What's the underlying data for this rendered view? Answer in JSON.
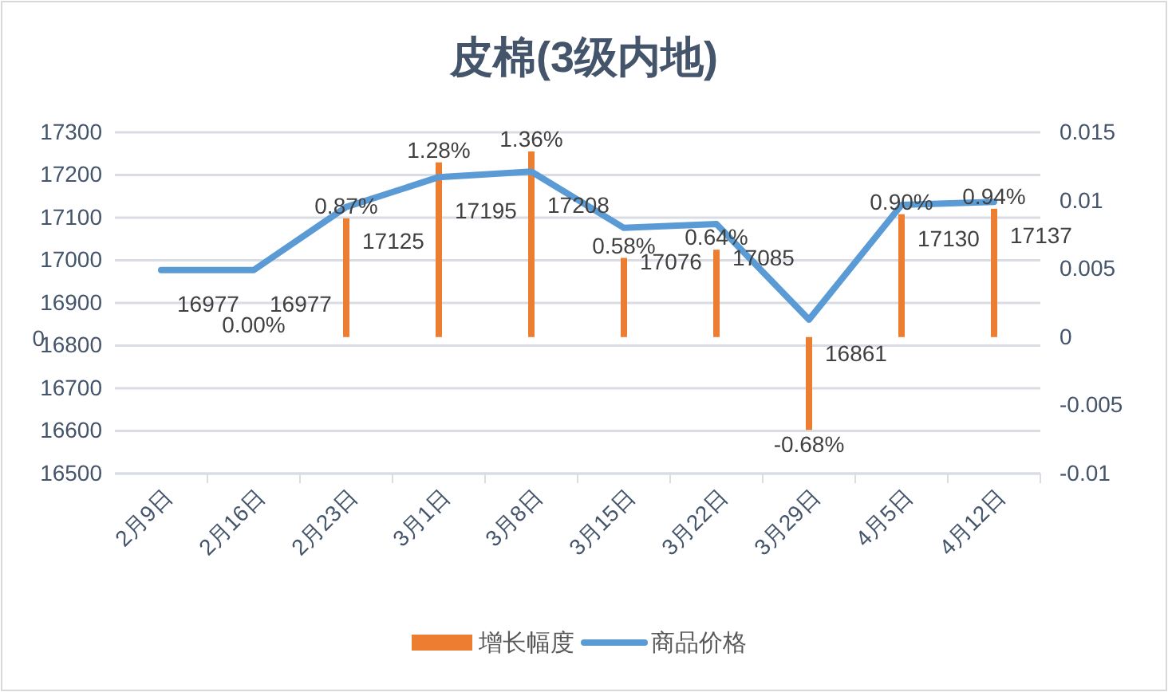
{
  "chart_data": {
    "type": "bar",
    "title": "皮棉(3级内地)",
    "categories": [
      "2月9日",
      "2月16日",
      "2月23日",
      "3月1日",
      "3月8日",
      "3月15日",
      "3月22日",
      "3月29日",
      "4月5日",
      "4月12日"
    ],
    "series": [
      {
        "name": "增长幅度",
        "axis": "y2",
        "color": "#ed7d31",
        "values": [
          0,
          0,
          0.0087,
          0.0128,
          0.0136,
          0.0058,
          0.0064,
          -0.0068,
          0.009,
          0.0094
        ],
        "value_labels": [
          null,
          "0.00%",
          "0.87%",
          "1.28%",
          "1.36%",
          "0.58%",
          "0.64%",
          "-0.68%",
          "0.90%",
          "0.94%"
        ]
      },
      {
        "name": "商品价格",
        "type": "line",
        "color": "#5b9bd5",
        "values": [
          16977,
          16977,
          17125,
          17195,
          17208,
          17076,
          17085,
          16861,
          17130,
          17137
        ],
        "value_labels": [
          "16977",
          "16977",
          "17125",
          "17195",
          "17208",
          "17076",
          "17085",
          "16861",
          "17130",
          "17137"
        ]
      }
    ],
    "ylim": [
      16500,
      17300
    ],
    "yticks": [
      16500,
      16600,
      16700,
      16800,
      16900,
      17000,
      17100,
      17200,
      17300
    ],
    "y2lim": [
      -0.01,
      0.015
    ],
    "y2ticks": [
      -0.01,
      -0.005,
      0,
      0.005,
      0.01,
      0.015
    ],
    "grid": "y",
    "legend": "bottom",
    "marker": "none",
    "line_style": "solid",
    "annotations": [
      "0"
    ]
  }
}
